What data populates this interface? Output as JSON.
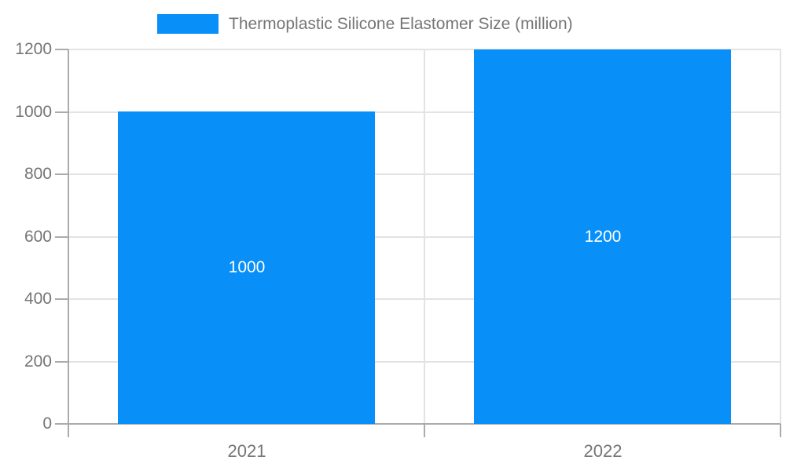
{
  "chart_data": {
    "type": "bar",
    "title": "Thermoplastic Silicone Elastomer Size (million)",
    "series_name": "Thermoplastic Silicone Elastomer Size (million)",
    "categories": [
      "2021",
      "2022"
    ],
    "values": [
      1000,
      1200
    ],
    "value_labels": [
      "1000",
      "1200"
    ],
    "xlabel": "",
    "ylabel": "",
    "ylim": [
      0,
      1200
    ],
    "yticks": [
      0,
      200,
      400,
      600,
      800,
      1000,
      1200
    ],
    "ytick_labels": [
      "0",
      "200",
      "400",
      "600",
      "800",
      "1000",
      "1200"
    ],
    "grid": true,
    "legend_position": "top",
    "colors": {
      "bar": "#0890F8",
      "grid_line": "#e3e3e3",
      "axis_line": "#ababab",
      "tick_line": "#ababab",
      "label_text": "#757575",
      "value_text": "#ffffff",
      "background": "#ffffff"
    }
  }
}
